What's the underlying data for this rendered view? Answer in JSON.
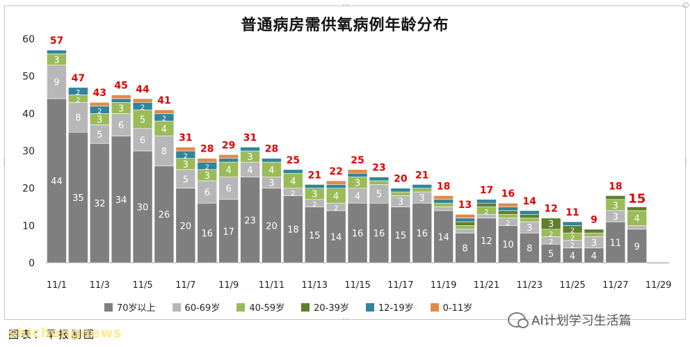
{
  "chart_data": {
    "type": "stacked-bar",
    "title": "普通病房需供氧病例年龄分布",
    "categories": [
      "11/1",
      "11/2",
      "11/3",
      "11/4",
      "11/5",
      "11/6",
      "11/7",
      "11/8",
      "11/9",
      "11/10",
      "11/11",
      "11/12",
      "11/13",
      "11/14",
      "11/15",
      "11/16",
      "11/17",
      "11/18",
      "11/19",
      "11/20",
      "11/21",
      "11/22",
      "11/23",
      "11/24",
      "11/25",
      "11/26",
      "11/27",
      "11/28"
    ],
    "x_tick_labels": [
      "11/1",
      "11/3",
      "11/5",
      "11/7",
      "11/9",
      "11/11",
      "11/13",
      "11/15",
      "11/17",
      "11/19",
      "11/21",
      "11/23",
      "11/25",
      "11/27",
      "11/29"
    ],
    "ylim": [
      0,
      60
    ],
    "y_ticks": [
      0,
      10,
      20,
      30,
      40,
      50,
      60
    ],
    "series": [
      {
        "name": "70岁以上",
        "color": "#7f7f7f",
        "values": [
          44,
          35,
          32,
          34,
          30,
          26,
          20,
          16,
          17,
          23,
          20,
          18,
          15,
          14,
          16,
          16,
          15,
          16,
          14,
          8,
          12,
          10,
          8,
          5,
          4,
          4,
          11,
          9
        ]
      },
      {
        "name": "60-69岁",
        "color": "#b7b7b7",
        "values": [
          9,
          8,
          5,
          6,
          6,
          8,
          5,
          6,
          6,
          4,
          3,
          2,
          2,
          2,
          4,
          5,
          3,
          3,
          1,
          1,
          1,
          2,
          3,
          2,
          2,
          3,
          3,
          1
        ]
      },
      {
        "name": "40-59岁",
        "color": "#9bbb59",
        "values": [
          3,
          2,
          3,
          3,
          5,
          4,
          3,
          3,
          4,
          3,
          4,
          4,
          3,
          4,
          3,
          1,
          1,
          1,
          1,
          1,
          2,
          1,
          1,
          2,
          2,
          1,
          3,
          4
        ]
      },
      {
        "name": "20-39岁",
        "color": "#5f7f2e",
        "values": [
          0,
          0,
          0,
          0,
          0,
          0,
          0,
          0,
          0,
          0,
          0,
          0,
          0,
          0,
          0,
          0,
          0,
          0,
          0,
          1,
          1,
          1,
          1,
          3,
          2,
          1,
          1,
          1
        ]
      },
      {
        "name": "12-19岁",
        "color": "#31849b",
        "values": [
          1,
          2,
          2,
          1,
          2,
          2,
          2,
          2,
          1,
          1,
          1,
          1,
          1,
          1,
          1,
          1,
          1,
          1,
          1,
          1,
          1,
          1,
          1,
          0,
          1,
          0,
          0,
          0
        ]
      },
      {
        "name": "0-11岁",
        "color": "#e08a4b",
        "values": [
          0,
          0,
          1,
          1,
          1,
          1,
          1,
          1,
          1,
          0,
          0,
          0,
          0,
          1,
          1,
          0,
          0,
          0,
          1,
          1,
          0,
          1,
          0,
          0,
          0,
          0,
          0,
          0
        ]
      }
    ],
    "totals": [
      57,
      47,
      43,
      45,
      44,
      41,
      31,
      28,
      29,
      31,
      28,
      25,
      21,
      22,
      25,
      23,
      20,
      21,
      18,
      13,
      17,
      16,
      14,
      12,
      11,
      9,
      18,
      15
    ],
    "grid": false,
    "legend": "bottom",
    "total_label_color": "#e00000"
  },
  "source_text": "图表：早报制图",
  "watermark_text": "shichengnews",
  "wechat_text": "AI计划学习生活篇"
}
